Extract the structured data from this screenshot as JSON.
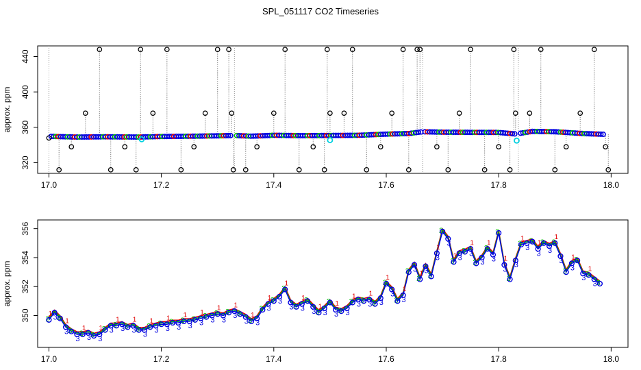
{
  "title": "SPL_051117  CO2 Timeseries",
  "chart_data": [
    {
      "type": "scatter",
      "title": "SPL_051117  CO2 Timeseries",
      "ylabel": "approx. ppm",
      "xlabel": "",
      "xlim": [
        16.98,
        18.03
      ],
      "ylim": [
        308,
        452
      ],
      "x_ticks": [
        17.0,
        17.2,
        17.4,
        17.6,
        17.8,
        18.0
      ],
      "x_tick_labels": [
        "17.0",
        "17.2",
        "17.4",
        "17.6",
        "17.8",
        "18.0"
      ],
      "y_ticks": [
        320,
        360,
        400,
        440
      ],
      "y_tick_labels": [
        "320",
        "360",
        "400",
        "440"
      ],
      "segments": [
        [
          17.0,
          17.33
        ],
        [
          17.33,
          17.665
        ],
        [
          17.665,
          17.835
        ],
        [
          17.835,
          17.99
        ]
      ],
      "baseline": {
        "x": [
          17.0,
          17.05,
          17.1,
          17.16,
          17.2,
          17.25,
          17.3,
          17.33,
          17.36,
          17.4,
          17.45,
          17.5,
          17.55,
          17.6,
          17.64,
          17.665,
          17.7,
          17.75,
          17.8,
          17.83,
          17.86,
          17.9,
          17.95,
          17.99
        ],
        "y": [
          349.8,
          349.0,
          349.3,
          349.0,
          349.6,
          349.9,
          350.4,
          350.8,
          350.0,
          351.0,
          350.6,
          350.8,
          351.0,
          352.3,
          353.0,
          355.0,
          354.5,
          354.3,
          354.2,
          352.5,
          355.4,
          355.0,
          353.0,
          352.0
        ]
      },
      "spikes_x": [
        17.0,
        17.018,
        17.04,
        17.065,
        17.09,
        17.11,
        17.135,
        17.155,
        17.163,
        17.185,
        17.21,
        17.235,
        17.258,
        17.278,
        17.3,
        17.32,
        17.325,
        17.328,
        17.35,
        17.37,
        17.4,
        17.42,
        17.445,
        17.47,
        17.49,
        17.495,
        17.5,
        17.525,
        17.54,
        17.565,
        17.59,
        17.61,
        17.63,
        17.64,
        17.655,
        17.66,
        17.69,
        17.71,
        17.73,
        17.75,
        17.775,
        17.8,
        17.82,
        17.827,
        17.83,
        17.855,
        17.875,
        17.9,
        17.92,
        17.945,
        17.97,
        17.99,
        17.995
      ],
      "spikes_y": [
        348,
        312,
        338,
        376,
        448,
        312,
        338,
        312,
        448,
        376,
        448,
        312,
        338,
        376,
        448,
        448,
        376,
        312,
        312,
        338,
        376,
        448,
        312,
        338,
        312,
        448,
        376,
        376,
        448,
        312,
        338,
        376,
        448,
        312,
        448,
        448,
        338,
        312,
        376,
        448,
        312,
        338,
        312,
        448,
        376,
        376,
        448,
        312,
        338,
        376,
        448,
        338,
        312
      ],
      "cyan_points_x": [
        17.165,
        17.5,
        17.832
      ],
      "cyan_points_y": [
        346.5,
        345.5,
        345.0
      ]
    },
    {
      "type": "line",
      "ylabel": "approx. ppm",
      "xlabel": "",
      "xlim": [
        16.98,
        18.03
      ],
      "ylim": [
        347.8,
        356.6
      ],
      "x_ticks": [
        17.0,
        17.2,
        17.4,
        17.6,
        17.8,
        18.0
      ],
      "x_tick_labels": [
        "17.0",
        "17.2",
        "17.4",
        "17.6",
        "17.8",
        "18.0"
      ],
      "y_ticks": [
        350,
        352,
        354,
        356
      ],
      "y_tick_labels": [
        "350",
        "352",
        "354",
        "356"
      ],
      "series_names": [
        "1",
        "2",
        "3"
      ],
      "series_colors": [
        "#e00000",
        "#00c000",
        "#0000e0"
      ],
      "x": [
        17.0,
        17.01,
        17.02,
        17.03,
        17.04,
        17.05,
        17.06,
        17.07,
        17.08,
        17.09,
        17.1,
        17.11,
        17.12,
        17.13,
        17.14,
        17.15,
        17.16,
        17.17,
        17.18,
        17.19,
        17.2,
        17.21,
        17.22,
        17.23,
        17.24,
        17.25,
        17.26,
        17.27,
        17.28,
        17.29,
        17.3,
        17.31,
        17.32,
        17.33,
        17.34,
        17.35,
        17.36,
        17.37,
        17.38,
        17.39,
        17.4,
        17.41,
        17.42,
        17.43,
        17.44,
        17.45,
        17.46,
        17.47,
        17.48,
        17.49,
        17.5,
        17.51,
        17.52,
        17.53,
        17.54,
        17.55,
        17.56,
        17.57,
        17.58,
        17.59,
        17.6,
        17.61,
        17.62,
        17.63,
        17.64,
        17.65,
        17.66,
        17.67,
        17.68,
        17.69,
        17.7,
        17.71,
        17.72,
        17.73,
        17.74,
        17.75,
        17.76,
        17.77,
        17.78,
        17.79,
        17.8,
        17.81,
        17.82,
        17.83,
        17.84,
        17.85,
        17.86,
        17.87,
        17.88,
        17.89,
        17.9,
        17.91,
        17.92,
        17.93,
        17.94,
        17.95,
        17.96,
        17.97,
        17.98
      ],
      "y": [
        349.7,
        350.2,
        349.8,
        349.2,
        348.9,
        348.7,
        348.7,
        348.8,
        348.6,
        348.7,
        349.0,
        349.3,
        349.3,
        349.4,
        349.2,
        349.3,
        349.0,
        349.0,
        349.2,
        349.3,
        349.4,
        349.4,
        349.5,
        349.5,
        349.6,
        349.6,
        349.7,
        349.8,
        349.9,
        350.0,
        350.1,
        350.0,
        350.2,
        350.3,
        350.1,
        349.9,
        349.6,
        349.8,
        350.4,
        350.8,
        351.0,
        351.3,
        351.8,
        350.9,
        350.6,
        350.8,
        351.0,
        350.6,
        350.2,
        350.5,
        350.9,
        350.4,
        350.3,
        350.5,
        350.9,
        351.1,
        351.0,
        351.1,
        350.8,
        351.2,
        352.2,
        351.8,
        351.0,
        351.4,
        353.0,
        353.5,
        352.5,
        353.4,
        352.7,
        354.3,
        355.8,
        355.3,
        353.7,
        354.3,
        354.4,
        354.6,
        353.6,
        354.0,
        354.6,
        354.2,
        355.7,
        353.5,
        352.5,
        353.8,
        354.9,
        355.0,
        355.1,
        354.6,
        355.0,
        354.8,
        355.0,
        354.1,
        353.0,
        353.6,
        353.8,
        352.9,
        352.8,
        352.5,
        352.2
      ]
    }
  ]
}
